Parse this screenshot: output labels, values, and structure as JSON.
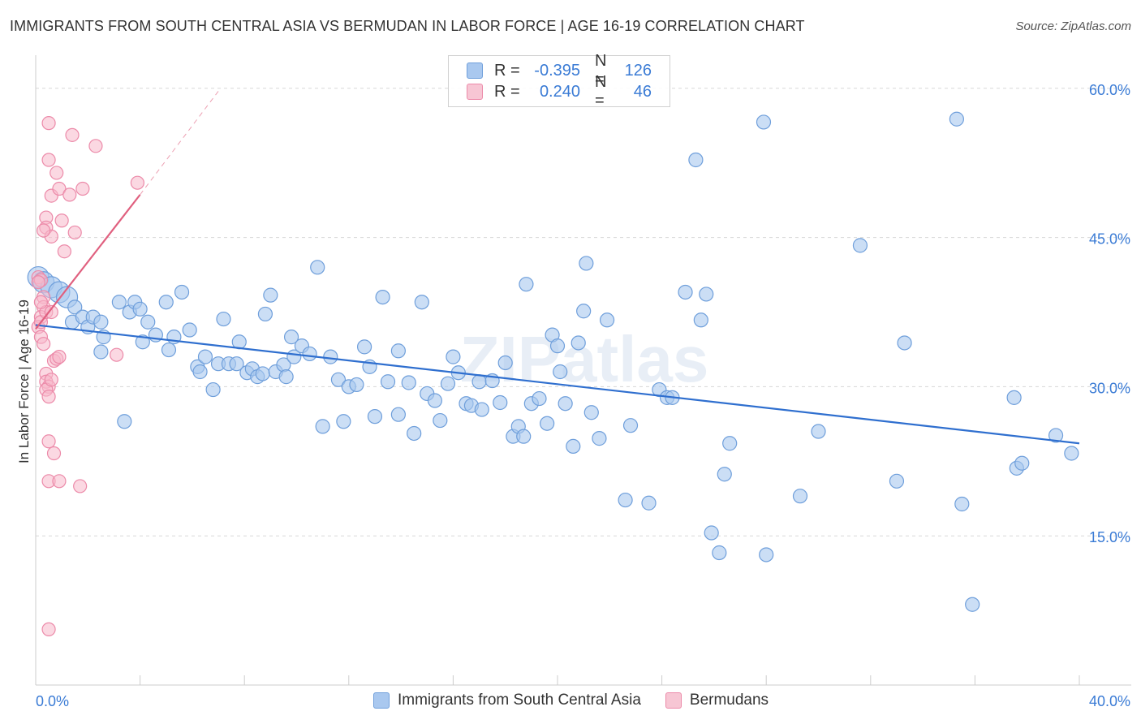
{
  "title": "IMMIGRANTS FROM SOUTH CENTRAL ASIA VS BERMUDAN IN LABOR FORCE | AGE 16-19 CORRELATION CHART",
  "source": "Source: ZipAtlas.com",
  "legend": {
    "rows": [
      {
        "r_label": "R =",
        "r_value": "-0.395",
        "n_label": "N =",
        "n_value": "126"
      },
      {
        "r_label": "R =",
        "r_value": "0.240",
        "n_label": "N =",
        "n_value": "46"
      }
    ]
  },
  "watermark": "ZIPatlas",
  "colors": {
    "blue_fill": "#a9c8ef",
    "blue_stroke": "#6f9fdb",
    "blue_line": "#2f6fcf",
    "pink_fill": "#f7b8cb",
    "pink_stroke": "#ec8aa9",
    "pink_line": "#e0607f",
    "axis_text": "#3a7bd5",
    "grid": "#d8d8d8"
  },
  "chart_data": {
    "type": "scatter",
    "title": "IMMIGRANTS FROM SOUTH CENTRAL ASIA VS BERMUDAN IN LABOR FORCE | AGE 16-19 CORRELATION CHART",
    "xlabel": "",
    "ylabel": "In Labor Force | Age 16-19",
    "xlim": [
      0,
      40
    ],
    "ylim": [
      0,
      63
    ],
    "x_tick_labels": [
      "0.0%",
      "40.0%"
    ],
    "y_tick_labels": [
      "15.0%",
      "30.0%",
      "45.0%",
      "60.0%"
    ],
    "y_ticks": [
      15,
      30,
      45,
      60
    ],
    "grid": true,
    "legend_position": "bottom",
    "series": [
      {
        "name": "Immigrants from South Central Asia",
        "color": "#6f9fdb",
        "trend": {
          "x": [
            0,
            40
          ],
          "y": [
            36.2,
            24.3
          ]
        },
        "points": [
          [
            0.1,
            41.0
          ],
          [
            0.3,
            40.5
          ],
          [
            0.6,
            40.0
          ],
          [
            0.9,
            39.5
          ],
          [
            1.2,
            39.0
          ],
          [
            1.5,
            38.0
          ],
          [
            1.4,
            36.5
          ],
          [
            1.8,
            37.0
          ],
          [
            2.0,
            36.0
          ],
          [
            2.2,
            37.0
          ],
          [
            2.5,
            36.5
          ],
          [
            2.6,
            35.0
          ],
          [
            2.5,
            33.5
          ],
          [
            3.2,
            38.5
          ],
          [
            3.6,
            37.5
          ],
          [
            3.8,
            38.5
          ],
          [
            4.0,
            37.8
          ],
          [
            4.3,
            36.5
          ],
          [
            4.6,
            35.2
          ],
          [
            4.1,
            34.5
          ],
          [
            5.0,
            38.5
          ],
          [
            5.3,
            35.0
          ],
          [
            5.6,
            39.5
          ],
          [
            5.1,
            33.7
          ],
          [
            5.9,
            35.7
          ],
          [
            6.2,
            32.0
          ],
          [
            6.3,
            31.5
          ],
          [
            6.5,
            33.0
          ],
          [
            6.8,
            29.7
          ],
          [
            7.0,
            32.3
          ],
          [
            7.2,
            36.8
          ],
          [
            7.4,
            32.3
          ],
          [
            7.7,
            32.3
          ],
          [
            7.8,
            34.5
          ],
          [
            8.1,
            31.4
          ],
          [
            8.3,
            31.8
          ],
          [
            8.5,
            31.0
          ],
          [
            8.7,
            31.3
          ],
          [
            8.8,
            37.3
          ],
          [
            9.0,
            39.2
          ],
          [
            9.2,
            31.5
          ],
          [
            9.5,
            32.2
          ],
          [
            9.6,
            31.0
          ],
          [
            9.8,
            35.0
          ],
          [
            9.9,
            33.0
          ],
          [
            10.2,
            34.1
          ],
          [
            10.5,
            33.3
          ],
          [
            10.8,
            42.0
          ],
          [
            11.0,
            26.0
          ],
          [
            11.3,
            33.0
          ],
          [
            11.6,
            30.7
          ],
          [
            11.8,
            26.5
          ],
          [
            12.0,
            30.0
          ],
          [
            12.3,
            30.2
          ],
          [
            12.6,
            34.0
          ],
          [
            12.8,
            32.0
          ],
          [
            13.0,
            27.0
          ],
          [
            13.3,
            39.0
          ],
          [
            13.5,
            30.5
          ],
          [
            13.9,
            33.6
          ],
          [
            13.9,
            27.2
          ],
          [
            14.3,
            30.4
          ],
          [
            14.5,
            25.3
          ],
          [
            14.8,
            38.5
          ],
          [
            15.0,
            29.3
          ],
          [
            15.3,
            28.6
          ],
          [
            15.5,
            26.6
          ],
          [
            15.8,
            30.3
          ],
          [
            16.0,
            33.0
          ],
          [
            16.2,
            31.4
          ],
          [
            16.5,
            28.3
          ],
          [
            16.7,
            28.1
          ],
          [
            17.0,
            30.5
          ],
          [
            17.1,
            27.7
          ],
          [
            17.5,
            30.6
          ],
          [
            17.8,
            28.4
          ],
          [
            18.0,
            32.4
          ],
          [
            18.3,
            25.0
          ],
          [
            18.5,
            26.0
          ],
          [
            18.7,
            25.0
          ],
          [
            18.8,
            40.3
          ],
          [
            19.0,
            28.3
          ],
          [
            19.3,
            28.8
          ],
          [
            19.6,
            26.3
          ],
          [
            19.8,
            35.2
          ],
          [
            20.0,
            34.1
          ],
          [
            20.1,
            31.5
          ],
          [
            20.3,
            28.3
          ],
          [
            20.6,
            24.0
          ],
          [
            20.8,
            34.4
          ],
          [
            21.0,
            37.6
          ],
          [
            21.1,
            42.4
          ],
          [
            21.3,
            27.4
          ],
          [
            21.6,
            24.8
          ],
          [
            21.9,
            36.7
          ],
          [
            22.6,
            18.6
          ],
          [
            22.8,
            26.1
          ],
          [
            23.5,
            18.3
          ],
          [
            23.9,
            29.7
          ],
          [
            24.2,
            28.9
          ],
          [
            24.4,
            28.9
          ],
          [
            24.9,
            39.5
          ],
          [
            25.3,
            52.8
          ],
          [
            25.5,
            36.7
          ],
          [
            25.7,
            39.3
          ],
          [
            25.9,
            15.3
          ],
          [
            26.2,
            13.3
          ],
          [
            26.4,
            21.2
          ],
          [
            26.6,
            24.3
          ],
          [
            27.9,
            56.6
          ],
          [
            28.0,
            13.1
          ],
          [
            29.3,
            19.0
          ],
          [
            30.0,
            25.5
          ],
          [
            31.6,
            44.2
          ],
          [
            33.0,
            20.5
          ],
          [
            33.3,
            34.4
          ],
          [
            35.3,
            56.9
          ],
          [
            35.5,
            18.2
          ],
          [
            35.9,
            8.1
          ],
          [
            37.5,
            28.9
          ],
          [
            37.6,
            21.8
          ],
          [
            37.8,
            22.3
          ],
          [
            39.1,
            25.1
          ],
          [
            39.7,
            23.3
          ],
          [
            3.4,
            26.5
          ]
        ]
      },
      {
        "name": "Bermudans",
        "color": "#ec8aa9",
        "trend": {
          "x": [
            0,
            4.0
          ],
          "y": [
            35.8,
            49.3
          ]
        },
        "trend_dashed": {
          "x": [
            4.0,
            7.0
          ],
          "y": [
            49.3,
            59.7
          ]
        },
        "points": [
          [
            0.1,
            41.0
          ],
          [
            0.2,
            40.7
          ],
          [
            0.3,
            39.0
          ],
          [
            0.3,
            38.0
          ],
          [
            0.2,
            37.0
          ],
          [
            0.1,
            36.0
          ],
          [
            0.2,
            35.0
          ],
          [
            0.3,
            34.3
          ],
          [
            0.2,
            36.5
          ],
          [
            0.4,
            37.5
          ],
          [
            0.6,
            37.5
          ],
          [
            0.4,
            31.3
          ],
          [
            0.4,
            30.5
          ],
          [
            0.5,
            30.0
          ],
          [
            0.4,
            29.7
          ],
          [
            0.5,
            29.0
          ],
          [
            0.6,
            30.7
          ],
          [
            0.7,
            32.6
          ],
          [
            0.8,
            32.8
          ],
          [
            0.9,
            33.0
          ],
          [
            0.4,
            47.0
          ],
          [
            0.4,
            46.0
          ],
          [
            0.6,
            45.1
          ],
          [
            0.5,
            56.5
          ],
          [
            0.5,
            52.8
          ],
          [
            0.6,
            49.2
          ],
          [
            0.8,
            51.5
          ],
          [
            0.9,
            49.9
          ],
          [
            1.0,
            46.7
          ],
          [
            1.1,
            43.6
          ],
          [
            1.3,
            49.3
          ],
          [
            1.4,
            55.3
          ],
          [
            1.5,
            45.5
          ],
          [
            1.8,
            49.9
          ],
          [
            2.3,
            54.2
          ],
          [
            3.1,
            33.2
          ],
          [
            3.9,
            50.5
          ],
          [
            0.5,
            24.5
          ],
          [
            0.7,
            23.3
          ],
          [
            0.5,
            20.5
          ],
          [
            0.9,
            20.5
          ],
          [
            1.7,
            20.0
          ],
          [
            0.5,
            5.6
          ],
          [
            0.3,
            45.7
          ],
          [
            0.1,
            40.5
          ],
          [
            0.2,
            38.5
          ]
        ]
      }
    ]
  },
  "bottom_legend": [
    {
      "label": "Immigrants from South Central Asia"
    },
    {
      "label": "Bermudans"
    }
  ]
}
